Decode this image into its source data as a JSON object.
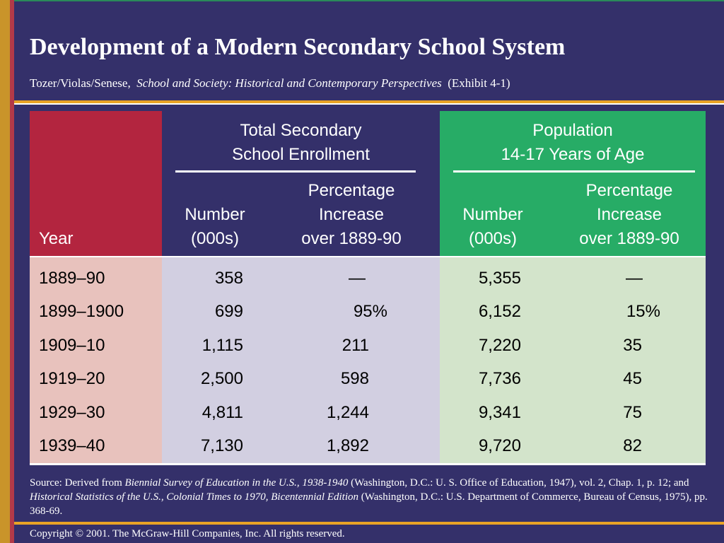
{
  "title": "Development of a Modern Secondary School System",
  "subtitle": {
    "authors": "Tozer/Violas/Senese,",
    "book": "School and Society:  Historical and Contemporary Perspectives",
    "exhibit": "(Exhibit 4-1)"
  },
  "colors": {
    "background": "#34306a",
    "year_header": "#b3253f",
    "population_header": "#27ac66",
    "accent_orange": "#e8a326"
  },
  "table": {
    "groups": {
      "enrollment": [
        "Total Secondary",
        "School Enrollment"
      ],
      "population": [
        "Population",
        "14-17 Years of Age"
      ]
    },
    "columns": {
      "year": "Year",
      "enr_number": [
        "Number",
        "(000s)"
      ],
      "enr_pct": [
        "Percentage",
        "Increase",
        "over 1889-90"
      ],
      "pop_number": [
        "Number",
        "(000s)"
      ],
      "pop_pct": [
        "Percentage",
        "Increase",
        "over 1889-90"
      ]
    },
    "rows": [
      {
        "year": "1889–90",
        "enr_number": "358",
        "enr_pct": "—",
        "pop_number": "5,355",
        "pop_pct": "—"
      },
      {
        "year": "1899–1900",
        "enr_number": "699",
        "enr_pct": "95%",
        "pop_number": "6,152",
        "pop_pct": "15%"
      },
      {
        "year": "1909–10",
        "enr_number": "1,115",
        "enr_pct": "211",
        "pop_number": "7,220",
        "pop_pct": "35"
      },
      {
        "year": "1919–20",
        "enr_number": "2,500",
        "enr_pct": "598",
        "pop_number": "7,736",
        "pop_pct": "45"
      },
      {
        "year": "1929–30",
        "enr_number": "4,811",
        "enr_pct": "1,244",
        "pop_number": "9,341",
        "pop_pct": "75"
      },
      {
        "year": "1939–40",
        "enr_number": "7,130",
        "enr_pct": "1,892",
        "pop_number": "9,720",
        "pop_pct": "82"
      }
    ]
  },
  "source": {
    "prefix": "Source: Derived from ",
    "title1": "Biennial Survey of Education in the U.S., 1938-1940",
    "mid": " (Washington, D.C.:  U. S. Office of Education, 1947), vol. 2, Chap. 1, p. 12; and ",
    "title2": "Historical Statistics of the U.S., Colonial Times to 1970, Bicentennial Edition",
    "suffix": " (Washington, D.C.:  U.S. Department of Commerce, Bureau of Census, 1975), pp. 368-69."
  },
  "copyright": "Copyright © 2001. The McGraw-Hill Companies, Inc. All rights reserved."
}
